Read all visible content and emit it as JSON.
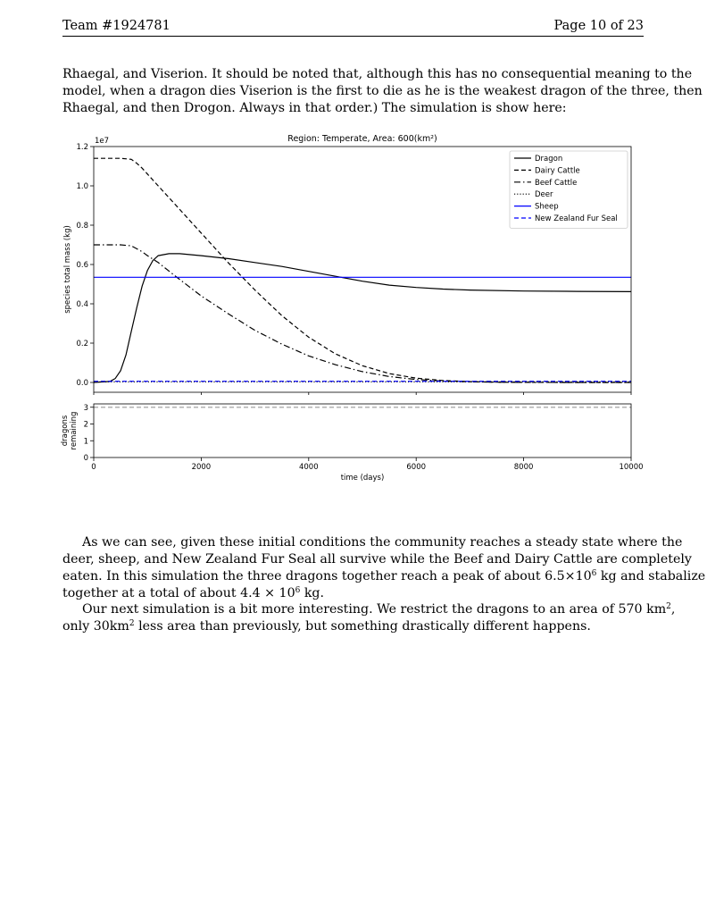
{
  "header": {
    "team": "Team #1924781",
    "page": "Page 10 of 23"
  },
  "paragraph_1": {
    "lines": [
      "Rhaegal, and Viserion. It should be noted that, although this has no consequential meaning to the",
      "model, when a dragon dies Viserion is the first to die as he is the weakest dragon of the three, then",
      "Rhaegal, and then Drogon. Always in that order.) The simulation is show here:"
    ]
  },
  "paragraph_2": {
    "line1": "As we can see, given these initial conditions the community reaches a steady state where the",
    "line2": "deer, sheep, and New Zealand Fur Seal all survive while the Beef and Dairy Cattle are completely",
    "line3_a": "eaten. In this simulation the three dragons together reach a peak of about 6.5×10",
    "line3_exp": "6",
    "line3_b": " kg and stabalize",
    "line4_a": "together at a total of about 4.4 × 10",
    "line4_exp": "6",
    "line4_b": " kg."
  },
  "paragraph_3": {
    "line1_a": "Our next simulation is a bit more interesting. We restrict the dragons to an area of 570 km",
    "line1_exp": "2",
    "line1_b": ",",
    "line2_a": "only 30km",
    "line2_exp": "2",
    "line2_b": " less area than previously, but something drastically different happens."
  },
  "chart_data": [
    {
      "type": "line",
      "title": "Region: Temperate, Area: 600(km²)",
      "xlabel": "",
      "ylabel": "species total mass (kg)",
      "y_multiplier_label": "1e7",
      "xlim": [
        0,
        10000
      ],
      "ylim": [
        -0.05,
        1.2
      ],
      "yticks": [
        0.0,
        0.2,
        0.4,
        0.6,
        0.8,
        1.0,
        1.2
      ],
      "ytick_labels": [
        "0.0",
        "0.2",
        "0.4",
        "0.6",
        "0.8",
        "1.0",
        "1.2"
      ],
      "grid": false,
      "legend_position": "top-right",
      "series": [
        {
          "name": "Dragon",
          "color": "#000000",
          "dash": "solid",
          "x": [
            0,
            300,
            400,
            500,
            600,
            700,
            800,
            900,
            1000,
            1100,
            1200,
            1400,
            1600,
            2000,
            2500,
            3000,
            3500,
            4000,
            4500,
            5000,
            5500,
            6000,
            6500,
            7000,
            8000,
            9000,
            10000
          ],
          "y": [
            0.0,
            0.005,
            0.02,
            0.06,
            0.14,
            0.26,
            0.38,
            0.49,
            0.57,
            0.62,
            0.645,
            0.655,
            0.655,
            0.645,
            0.63,
            0.61,
            0.59,
            0.565,
            0.54,
            0.515,
            0.495,
            0.483,
            0.475,
            0.47,
            0.465,
            0.463,
            0.462
          ]
        },
        {
          "name": "Dairy Cattle",
          "color": "#000000",
          "dash": "dashed",
          "x": [
            0,
            500,
            700,
            800,
            900,
            1000,
            1200,
            1500,
            2000,
            2500,
            3000,
            3500,
            4000,
            4500,
            5000,
            5500,
            6000,
            6500,
            7000,
            7500,
            8000,
            9000,
            10000
          ],
          "y": [
            1.14,
            1.14,
            1.135,
            1.115,
            1.09,
            1.06,
            1.0,
            0.91,
            0.76,
            0.61,
            0.47,
            0.34,
            0.23,
            0.145,
            0.085,
            0.045,
            0.022,
            0.01,
            0.004,
            0.0015,
            0.0005,
            0.0,
            0.0
          ]
        },
        {
          "name": "Beef Cattle",
          "color": "#000000",
          "dash": "dashdot",
          "x": [
            0,
            500,
            700,
            800,
            900,
            1000,
            1200,
            1500,
            2000,
            2500,
            3000,
            3500,
            4000,
            4500,
            5000,
            5500,
            6000,
            6500,
            7000,
            7500,
            8000,
            9000,
            10000
          ],
          "y": [
            0.7,
            0.7,
            0.695,
            0.68,
            0.665,
            0.645,
            0.61,
            0.545,
            0.44,
            0.35,
            0.265,
            0.195,
            0.135,
            0.09,
            0.055,
            0.03,
            0.015,
            0.007,
            0.003,
            0.0012,
            0.0004,
            0.0,
            0.0
          ]
        },
        {
          "name": "Deer",
          "color": "#000000",
          "dash": "dotted",
          "x": [
            0,
            10000
          ],
          "y": [
            0.003,
            0.003
          ]
        },
        {
          "name": "Sheep",
          "color": "#0000ff",
          "dash": "solid",
          "x": [
            0,
            10000
          ],
          "y": [
            0.535,
            0.535
          ]
        },
        {
          "name": "New Zealand Fur Seal",
          "color": "#0000ff",
          "dash": "dashed",
          "x": [
            0,
            10000
          ],
          "y": [
            0.006,
            0.006
          ]
        }
      ]
    },
    {
      "type": "line",
      "title": "",
      "xlabel": "time (days)",
      "ylabel": "dragons remaining",
      "xlim": [
        0,
        10000
      ],
      "ylim": [
        0,
        3.2
      ],
      "xticks": [
        0,
        2000,
        4000,
        6000,
        8000,
        10000
      ],
      "xtick_labels": [
        "0",
        "2000",
        "4000",
        "6000",
        "8000",
        "10000"
      ],
      "yticks": [
        0,
        1,
        2,
        3
      ],
      "ytick_labels": [
        "0",
        "1",
        "2",
        "3"
      ],
      "grid": false,
      "series": [
        {
          "color": "#999999",
          "dash": "dashed",
          "x": [
            0,
            10000
          ],
          "y": [
            3,
            3
          ]
        }
      ]
    }
  ]
}
